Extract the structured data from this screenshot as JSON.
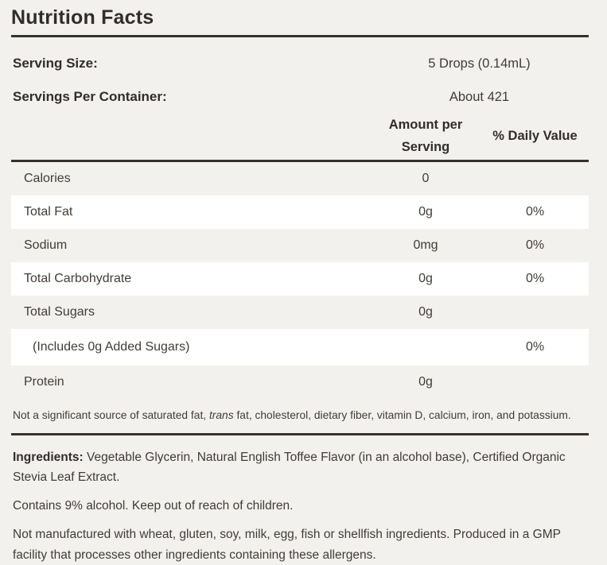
{
  "colors": {
    "background": "#f2f1ee",
    "stripe": "#ffffff",
    "rule": "#38322e",
    "text": "#423c38",
    "heading": "#322d2a"
  },
  "title": "Nutrition Facts",
  "serving": {
    "size_label": "Serving Size:",
    "size_value": "5 Drops (0.14mL)",
    "count_label": "Servings Per Container:",
    "count_value": "About 421"
  },
  "columns": {
    "amount_line1": "Amount per",
    "amount_line2": "Serving",
    "daily_value": "% Daily Value"
  },
  "rows": [
    {
      "label": "Calories",
      "amount": "0",
      "dv": ""
    },
    {
      "label": "Total Fat",
      "amount": "0g",
      "dv": "0%"
    },
    {
      "label": "Sodium",
      "amount": "0mg",
      "dv": "0%"
    },
    {
      "label": "Total Carbohydrate",
      "amount": "0g",
      "dv": "0%"
    },
    {
      "label": "Total Sugars",
      "amount": "0g",
      "dv": ""
    },
    {
      "label": "(Includes 0g Added Sugars)",
      "amount": "",
      "dv": "0%"
    },
    {
      "label": "Protein",
      "amount": "0g",
      "dv": ""
    }
  ],
  "footnote": {
    "prefix": "Not a significant source of saturated fat, ",
    "italic": "trans",
    "suffix": " fat, cholesterol, dietary fiber, vitamin D, calcium, iron, and potassium."
  },
  "ingredients": {
    "label": "Ingredients:",
    "text": " Vegetable Glycerin, Natural English Toffee Flavor (in an alcohol base), Certified Organic Stevia Leaf Extract."
  },
  "warnings": {
    "alcohol": "Contains 9% alcohol. Keep out of reach of children.",
    "allergen": "Not manufactured with wheat, gluten, soy, milk, egg, fish or shellfish ingredients. Produced in a GMP facility that processes other ingredients containing these allergens."
  }
}
